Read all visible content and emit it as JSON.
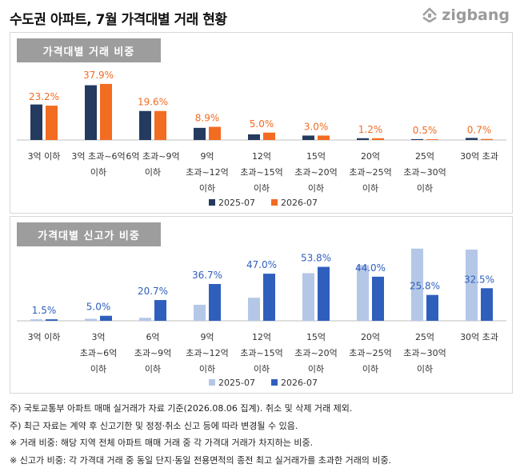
{
  "title": "수도권 아파트, 7월 가격대별 거래 현황",
  "logo": {
    "text": "zigbang",
    "icon": "zigbang-logo-icon"
  },
  "colors": {
    "c1_2025": "#243a5e",
    "c1_2026": "#f26c21",
    "c2_2025": "#b4c7e7",
    "c2_2026": "#2f5fbd",
    "label_orange": "#f26c21",
    "label_blue": "#2f5fbd"
  },
  "legend": {
    "s2025": "2025-07",
    "s2026": "2026-07"
  },
  "chart_data": [
    {
      "type": "bar",
      "title": "가격대별 거래 비중",
      "categories": [
        "3억 이하",
        "3억 초과~6억 이하",
        "6억 초과~9억 이하",
        "9억 초과~12억 이하",
        "12억 초과~15억 이하",
        "15억 초과~20억 이하",
        "20억 초과~25억 이하",
        "25억 초과~30억 이하",
        "30억 초과"
      ],
      "category_lines": [
        [
          "3억 이하"
        ],
        [
          "3억 초과~6억",
          "이하"
        ],
        [
          "6억 초과~9억",
          "이하"
        ],
        [
          "9억",
          "초과~12억",
          "이하"
        ],
        [
          "12억",
          "초과~15억",
          "이하"
        ],
        [
          "15억",
          "초과~20억",
          "이하"
        ],
        [
          "20억",
          "초과~25억",
          "이하"
        ],
        [
          "25억",
          "초과~30억",
          "이하"
        ],
        [
          "30억 초과"
        ]
      ],
      "series": [
        {
          "name": "2025-07",
          "values": [
            24.0,
            37.0,
            19.6,
            8.2,
            3.8,
            3.0,
            1.2,
            0.6,
            1.4
          ]
        },
        {
          "name": "2026-07",
          "values": [
            23.2,
            37.9,
            19.6,
            8.9,
            5.0,
            3.0,
            1.2,
            0.5,
            0.7
          ]
        }
      ],
      "data_labels": [
        "23.2%",
        "37.9%",
        "19.6%",
        "8.9%",
        "5.0%",
        "3.0%",
        "1.2%",
        "0.5%",
        "0.7%"
      ],
      "ylim": [
        0,
        40
      ],
      "grid": false,
      "legend_position": "bottom"
    },
    {
      "type": "bar",
      "title": "가격대별 신고가 비중",
      "categories": [
        "3억 이하",
        "3억 초과~6억 이하",
        "6억 초과~9억 이하",
        "9억 초과~12억 이하",
        "12억 초과~15억 이하",
        "15억 초과~20억 이하",
        "20억 초과~25억 이하",
        "25억 초과~30억 이하",
        "30억 초과"
      ],
      "category_lines": [
        [
          "3억 이하"
        ],
        [
          "3억",
          "초과~6억",
          "이하"
        ],
        [
          "6억",
          "초과~9억",
          "이하"
        ],
        [
          "9억",
          "초과~12억",
          "이하"
        ],
        [
          "12억",
          "초과~15억",
          "이하"
        ],
        [
          "15억",
          "초과~20억",
          "이하"
        ],
        [
          "20억",
          "초과~25억",
          "이하"
        ],
        [
          "25억",
          "초과~30억",
          "이하"
        ],
        [
          "30억 초과"
        ]
      ],
      "series": [
        {
          "name": "2025-07",
          "values": [
            1.5,
            2.0,
            3.0,
            16.0,
            23.0,
            47.5,
            55.5,
            72.0,
            71.0
          ]
        },
        {
          "name": "2026-07",
          "values": [
            1.5,
            5.0,
            20.7,
            36.7,
            47.0,
            53.8,
            44.0,
            25.8,
            32.5
          ]
        }
      ],
      "data_labels": [
        "1.5%",
        "5.0%",
        "20.7%",
        "36.7%",
        "47.0%",
        "53.8%",
        "44.0%",
        "25.8%",
        "32.5%"
      ],
      "ylim": [
        0,
        75
      ],
      "grid": false,
      "legend_position": "bottom"
    }
  ],
  "notes": [
    "주) 국토교통부 아파트 매매 실거래가 자료 기준(2026.08.06 집계). 취소 및 삭제 거래 제외.",
    "주) 최근 자료는 계약 후 신고기한 및 정정·취소 신고 등에 따라 변경될 수 있음.",
    "※ 거래 비중: 해당 지역 전체 아파트 매매 거래 중 각 가격대 거래가 차지하는 비중.",
    "※ 신고가 비중: 각 가격대 거래 중 동일 단지·동일 전용면적의 종전 최고 실거래가를 초과한 거래의 비중."
  ]
}
